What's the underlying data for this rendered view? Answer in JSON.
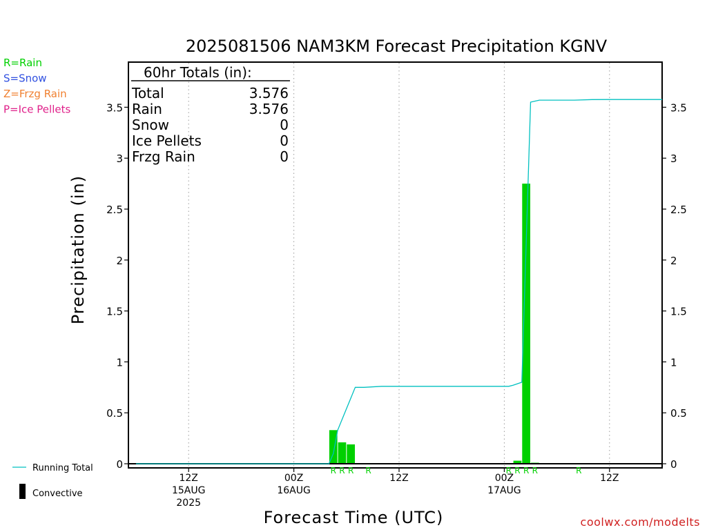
{
  "chart_data": {
    "type": "bar",
    "title": "2025081506 NAM3KM Forecast Precipitation KGNV",
    "xlabel": "Forecast Time (UTC)",
    "ylabel": "Precipitation (in)",
    "ylim": [
      0,
      3.9
    ],
    "y_ticks": [
      "0",
      "0.5",
      "1",
      "1.5",
      "2",
      "2.5",
      "3",
      "3.5"
    ],
    "x_ticks": [
      {
        "hour": 12,
        "lines": [
          "12Z",
          "15AUG",
          "2025"
        ]
      },
      {
        "hour": 24,
        "lines": [
          "00Z",
          "16AUG"
        ]
      },
      {
        "hour": 36,
        "lines": [
          "12Z"
        ]
      },
      {
        "hour": 48,
        "lines": [
          "00Z",
          "17AUG"
        ]
      },
      {
        "hour": 60,
        "lines": [
          "12Z"
        ]
      }
    ],
    "x_start": "2025-08-15 06Z",
    "xlim_hours": [
      6,
      66
    ],
    "grid": true,
    "series": [
      {
        "name": "Convective",
        "kind": "bar",
        "color": "#00d000",
        "points": [
          {
            "hour": 28.5,
            "value": 0.33
          },
          {
            "hour": 29.5,
            "value": 0.21
          },
          {
            "hour": 30.5,
            "value": 0.19
          },
          {
            "hour": 49.5,
            "value": 0.03
          },
          {
            "hour": 50.5,
            "value": 2.75
          },
          {
            "hour": 51.5,
            "value": 0.01
          }
        ]
      },
      {
        "name": "Running Total",
        "kind": "line",
        "color": "#00c0c0",
        "x": [
          6,
          28,
          28.5,
          29,
          30,
          31,
          32,
          34,
          48,
          48.5,
          49,
          50,
          51,
          52,
          54,
          56,
          58,
          60,
          62,
          66
        ],
        "y": [
          0,
          0,
          0.1,
          0.33,
          0.54,
          0.75,
          0.75,
          0.76,
          0.76,
          0.76,
          0.77,
          0.8,
          3.55,
          3.57,
          3.57,
          3.57,
          3.575,
          3.576,
          3.576,
          3.576
        ]
      }
    ],
    "precip_type_marks": [
      {
        "hour": 28.5,
        "letter": "R"
      },
      {
        "hour": 29.5,
        "letter": "R"
      },
      {
        "hour": 30.5,
        "letter": "R"
      },
      {
        "hour": 32.5,
        "letter": "R"
      },
      {
        "hour": 48.5,
        "letter": "R"
      },
      {
        "hour": 49.5,
        "letter": "R"
      },
      {
        "hour": 50.5,
        "letter": "R"
      },
      {
        "hour": 51.5,
        "letter": "R"
      },
      {
        "hour": 56.5,
        "letter": "R"
      }
    ]
  },
  "totals": {
    "header": "60hr Totals (in):",
    "rows": [
      {
        "label": "Total",
        "value": "3.576"
      },
      {
        "label": "Rain",
        "value": "3.576"
      },
      {
        "label": "Snow",
        "value": "0"
      },
      {
        "label": "Ice Pellets",
        "value": "0"
      },
      {
        "label": "Frzg Rain",
        "value": "0"
      }
    ]
  },
  "type_legend": [
    {
      "text": "R=Rain",
      "color": "#00d000"
    },
    {
      "text": "S=Snow",
      "color": "#3050e0"
    },
    {
      "text": "Z=Frzg Rain",
      "color": "#f08030"
    },
    {
      "text": "P=Ice Pellets",
      "color": "#e0208a"
    }
  ],
  "series_legend": {
    "running_total": "Running Total",
    "convective": "Convective"
  },
  "credit": "coolwx.com/modelts",
  "colors": {
    "bar": "#00d000",
    "line": "#00c0c0",
    "credit": "#d02020",
    "rain_mark": "#00d000"
  }
}
